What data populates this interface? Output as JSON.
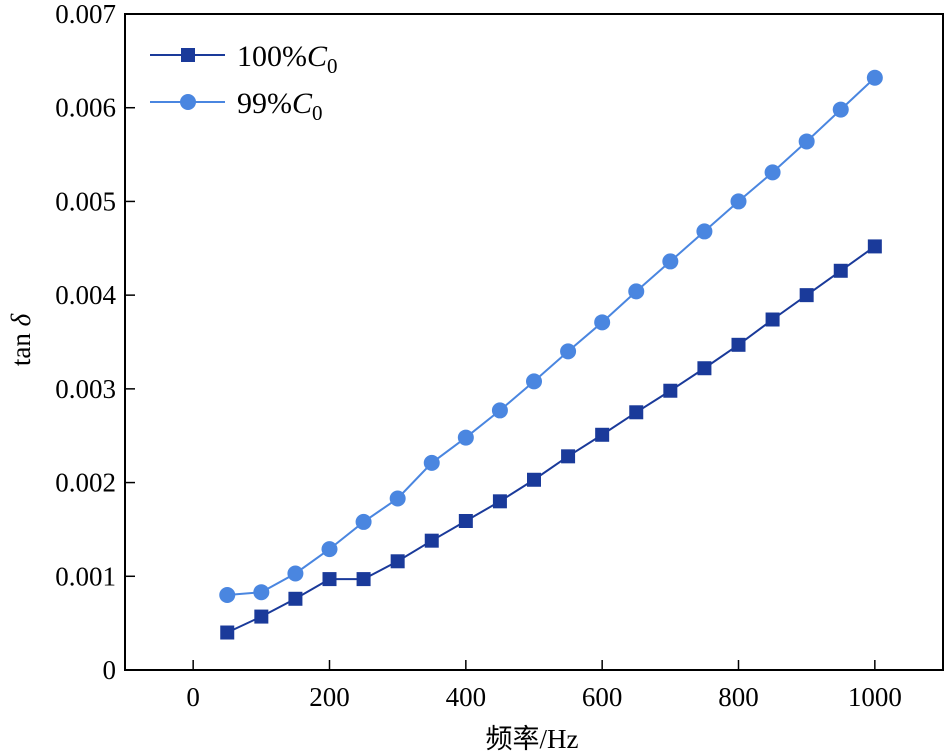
{
  "chart_data": {
    "type": "line",
    "xlabel": "频率/Hz",
    "ylabel_prefix": "tan ",
    "ylabel_symbol": "δ",
    "xlim": [
      -100,
      1100
    ],
    "ylim": [
      0,
      0.007
    ],
    "xticks": [
      0,
      200,
      400,
      600,
      800,
      1000
    ],
    "xtick_labels": [
      "0",
      "200",
      "400",
      "600",
      "800",
      "1000"
    ],
    "yticks": [
      0,
      0.001,
      0.002,
      0.003,
      0.004,
      0.005,
      0.006,
      0.007
    ],
    "ytick_labels": [
      "0",
      "0.001",
      "0.002",
      "0.003",
      "0.004",
      "0.005",
      "0.006",
      "0.007"
    ],
    "grid": false,
    "legend_position": "top-left",
    "x": [
      50,
      100,
      150,
      200,
      250,
      300,
      350,
      400,
      450,
      500,
      550,
      600,
      650,
      700,
      750,
      800,
      850,
      900,
      950,
      1000
    ],
    "series": [
      {
        "name": "100%C0",
        "legend_main": "100%",
        "legend_italic": "C",
        "legend_sub": "0",
        "marker": "square",
        "color": "#1a3a9a",
        "values": [
          0.0004,
          0.00057,
          0.00076,
          0.00097,
          0.00097,
          0.00116,
          0.00138,
          0.00159,
          0.0018,
          0.00203,
          0.00228,
          0.00251,
          0.00275,
          0.00298,
          0.00322,
          0.00347,
          0.00374,
          0.004,
          0.00426,
          0.00452
        ]
      },
      {
        "name": "99%C0",
        "legend_main": "99%",
        "legend_italic": "C",
        "legend_sub": "0",
        "marker": "circle",
        "color": "#4a86e0",
        "values": [
          0.0008,
          0.00083,
          0.00103,
          0.00129,
          0.00158,
          0.00183,
          0.00221,
          0.00248,
          0.00277,
          0.00308,
          0.0034,
          0.00371,
          0.00404,
          0.00436,
          0.00468,
          0.005,
          0.00531,
          0.00564,
          0.00598,
          0.00632
        ]
      }
    ]
  }
}
